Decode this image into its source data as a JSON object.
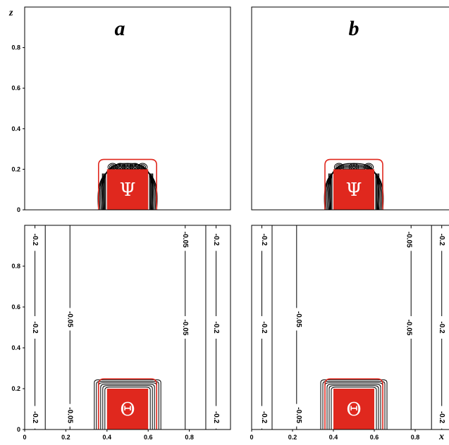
{
  "chart_data": [
    {
      "type": "contour",
      "panel": "a",
      "field": "Ψ",
      "ylabel": "z",
      "yticks": [
        "0",
        "0.2",
        "0.4",
        "0.6",
        "0.8"
      ],
      "xticks": [],
      "xlim": [
        0,
        1
      ],
      "ylim": [
        0,
        1
      ],
      "source_box": {
        "x": [
          0.4,
          0.6
        ],
        "z": [
          0,
          0.2
        ]
      },
      "contour_labels": []
    },
    {
      "type": "contour",
      "panel": "b",
      "field": "Ψ",
      "yticks": [],
      "xticks": [],
      "xlim": [
        0,
        1
      ],
      "ylim": [
        0,
        1
      ],
      "source_box": {
        "x": [
          0.4,
          0.6
        ],
        "z": [
          0,
          0.2
        ]
      },
      "contour_labels": []
    },
    {
      "type": "contour",
      "panel": "a",
      "field": "Θ",
      "yticks": [
        "0",
        "0.2",
        "0.4",
        "0.6",
        "0.8"
      ],
      "xticks": [
        "0",
        "0.2",
        "0.4",
        "0.6",
        "0.8"
      ],
      "xlim": [
        0,
        1
      ],
      "ylim": [
        0,
        1
      ],
      "source_box": {
        "x": [
          0.4,
          0.6
        ],
        "z": [
          0,
          0.2
        ]
      },
      "contour_labels": [
        {
          "text": "-0.2",
          "x": 0.05,
          "z": 0.93
        },
        {
          "text": "-0.2",
          "x": 0.05,
          "z": 0.5
        },
        {
          "text": "-0.2",
          "x": 0.05,
          "z": 0.06
        },
        {
          "text": "-0.05",
          "x": 0.22,
          "z": 0.54
        },
        {
          "text": "-0.05",
          "x": 0.22,
          "z": 0.07
        },
        {
          "text": "-0.05",
          "x": 0.78,
          "z": 0.93
        },
        {
          "text": "-0.05",
          "x": 0.78,
          "z": 0.5
        },
        {
          "text": "-0.2",
          "x": 0.93,
          "z": 0.93
        },
        {
          "text": "-0.2",
          "x": 0.93,
          "z": 0.5
        },
        {
          "text": "-0.2",
          "x": 0.93,
          "z": 0.06
        }
      ]
    },
    {
      "type": "contour",
      "panel": "b",
      "field": "Θ",
      "yticks": [],
      "xticks": [
        "0",
        "0.2",
        "0.4",
        "0.6",
        "0.8"
      ],
      "xlabel": "x",
      "xlim": [
        0,
        1
      ],
      "ylim": [
        0,
        1
      ],
      "source_box": {
        "x": [
          0.4,
          0.6
        ],
        "z": [
          0,
          0.2
        ]
      },
      "contour_labels": [
        {
          "text": "-0.2",
          "x": 0.06,
          "z": 0.93
        },
        {
          "text": "-0.2",
          "x": 0.06,
          "z": 0.5
        },
        {
          "text": "-0.2",
          "x": 0.06,
          "z": 0.06
        },
        {
          "text": "-0.05",
          "x": 0.23,
          "z": 0.54
        },
        {
          "text": "-0.05",
          "x": 0.23,
          "z": 0.07
        },
        {
          "text": "-0.05",
          "x": 0.77,
          "z": 0.93
        },
        {
          "text": "-0.05",
          "x": 0.77,
          "z": 0.5
        },
        {
          "text": "-0.2",
          "x": 0.93,
          "z": 0.93
        },
        {
          "text": "-0.2",
          "x": 0.93,
          "z": 0.5
        },
        {
          "text": "-0.2",
          "x": 0.93,
          "z": 0.06
        }
      ]
    }
  ],
  "colors": {
    "source": "#e0281e",
    "contour": "#000000",
    "outline": "#e0281e"
  }
}
